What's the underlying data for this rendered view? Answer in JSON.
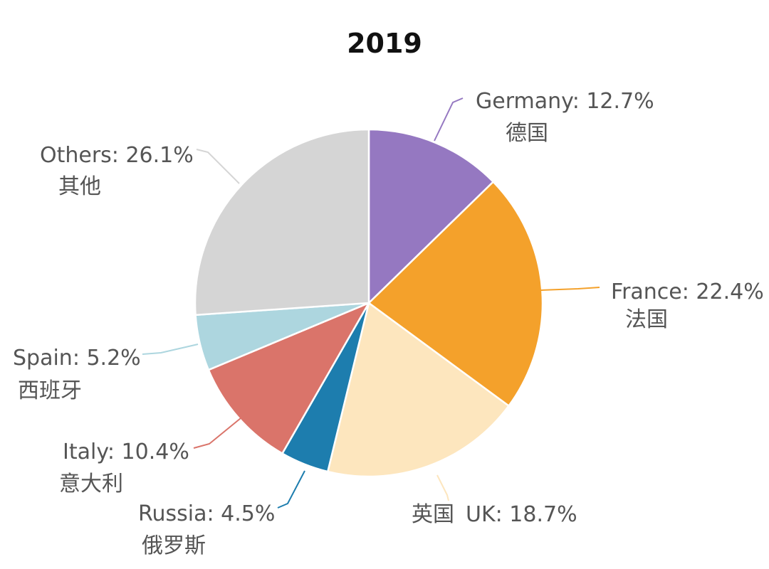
{
  "chart_data": {
    "type": "pie",
    "title": "2019",
    "start_angle_deg": 0,
    "direction": "clockwise",
    "slices": [
      {
        "key": "germany",
        "label": "Germany: 12.7%",
        "sublabel": "德国",
        "value": 12.7,
        "color": "#9578C1"
      },
      {
        "key": "france",
        "label": "France: 22.4%",
        "sublabel": "法国",
        "value": 22.4,
        "color": "#F4A12B"
      },
      {
        "key": "uk",
        "label": "UK: 18.7%",
        "sublabel": "英国",
        "value": 18.7,
        "color": "#FDE6BE"
      },
      {
        "key": "russia",
        "label": "Russia: 4.5%",
        "sublabel": "俄罗斯",
        "value": 4.5,
        "color": "#1D7DAE"
      },
      {
        "key": "italy",
        "label": "Italy: 10.4%",
        "sublabel": "意大利",
        "value": 10.4,
        "color": "#DA746A"
      },
      {
        "key": "spain",
        "label": "Spain: 5.2%",
        "sublabel": "西班牙",
        "value": 5.2,
        "color": "#ADD6DF"
      },
      {
        "key": "others",
        "label": "Others: 26.1%",
        "sublabel": "其他",
        "value": 26.1,
        "color": "#D5D5D5"
      }
    ]
  }
}
